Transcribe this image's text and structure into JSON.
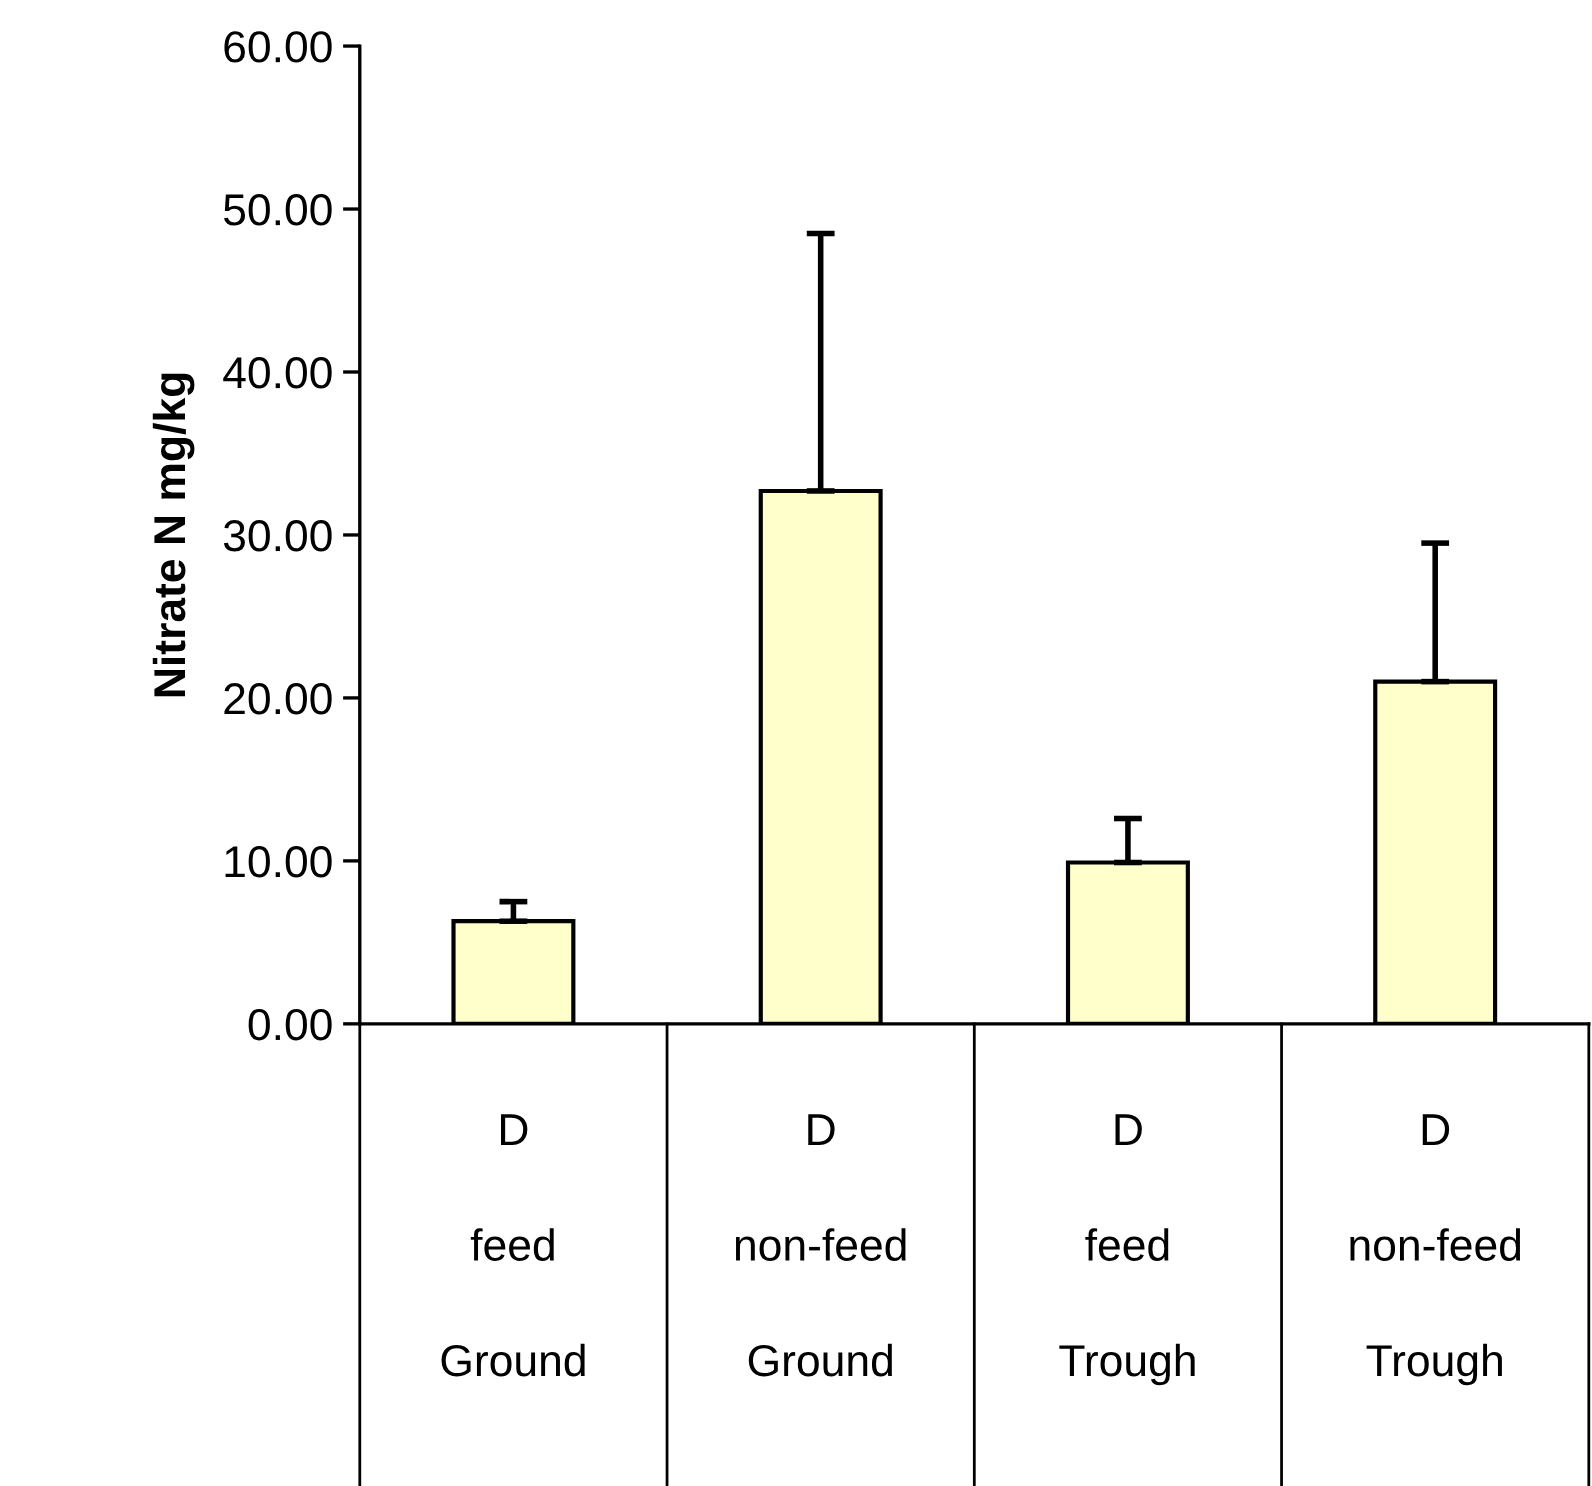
{
  "chart_data": {
    "type": "bar",
    "ylabel": "Nitrate N mg/kg",
    "categories": [
      "D\nfeed\nGround",
      "D\nnon-feed\nGround",
      "D\nfeed\nTrough",
      "D\nnon-feed\nTrough"
    ],
    "values": [
      6.3,
      32.7,
      9.9,
      21.0
    ],
    "errors": [
      [
        6.3,
        7.5
      ],
      [
        32.7,
        48.5
      ],
      [
        9.9,
        12.6
      ],
      [
        21.0,
        29.5
      ]
    ],
    "color": "#ffffcc",
    "ylim": [
      0,
      60
    ],
    "yticks": [
      {
        "value": 0,
        "label": "0.00"
      },
      {
        "value": 10,
        "label": "10.00"
      },
      {
        "value": 20,
        "label": "20.00"
      },
      {
        "value": 30,
        "label": "30.00"
      },
      {
        "value": 40,
        "label": "40.00"
      },
      {
        "value": 50,
        "label": "50.00"
      },
      {
        "value": 60,
        "label": "60.00"
      }
    ],
    "grid": false,
    "legend": false
  }
}
